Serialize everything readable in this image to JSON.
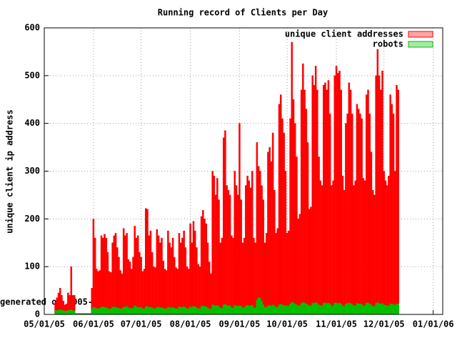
{
  "chart_data": {
    "type": "bar",
    "title": "Running record of Clients per Day",
    "ylabel": "unique client ip address",
    "footer": "generated on 2005-1",
    "x": [
      "05/08/05",
      "05/09/05",
      "05/10/05",
      "05/11/05",
      "05/12/05",
      "05/13/05",
      "05/14/05",
      "05/15/05",
      "05/16/05",
      "05/17/05",
      "05/18/05",
      "05/19/05",
      "05/20/05",
      "05/21/05",
      "05/22/05",
      "05/23/05",
      "05/24/05",
      "05/25/05",
      "05/26/05",
      "05/27/05",
      "05/28/05",
      "05/29/05",
      "05/30/05",
      "05/31/05",
      "06/01/05",
      "06/02/05",
      "06/03/05",
      "06/04/05",
      "06/05/05",
      "06/06/05",
      "06/07/05",
      "06/08/05",
      "06/09/05",
      "06/10/05",
      "06/11/05",
      "06/12/05",
      "06/13/05",
      "06/14/05",
      "06/15/05",
      "06/16/05",
      "06/17/05",
      "06/18/05",
      "06/19/05",
      "06/20/05",
      "06/21/05",
      "06/22/05",
      "06/23/05",
      "06/24/05",
      "06/25/05",
      "06/26/05",
      "06/27/05",
      "06/28/05",
      "06/29/05",
      "06/30/05",
      "07/01/05",
      "07/02/05",
      "07/03/05",
      "07/04/05",
      "07/05/05",
      "07/06/05",
      "07/07/05",
      "07/08/05",
      "07/09/05",
      "07/10/05",
      "07/11/05",
      "07/12/05",
      "07/13/05",
      "07/14/05",
      "07/15/05",
      "07/16/05",
      "07/17/05",
      "07/18/05",
      "07/19/05",
      "07/20/05",
      "07/21/05",
      "07/22/05",
      "07/23/05",
      "07/24/05",
      "07/25/05",
      "07/26/05",
      "07/27/05",
      "07/28/05",
      "07/29/05",
      "07/30/05",
      "07/31/05",
      "08/01/05",
      "08/02/05",
      "08/03/05",
      "08/04/05",
      "08/05/05",
      "08/06/05",
      "08/07/05",
      "08/08/05",
      "08/09/05",
      "08/10/05",
      "08/11/05",
      "08/12/05",
      "08/13/05",
      "08/14/05",
      "08/15/05",
      "08/16/05",
      "08/17/05",
      "08/18/05",
      "08/19/05",
      "08/20/05",
      "08/21/05",
      "08/22/05",
      "08/23/05",
      "08/24/05",
      "08/25/05",
      "08/26/05",
      "08/27/05",
      "08/28/05",
      "08/29/05",
      "08/30/05",
      "08/31/05",
      "09/01/05",
      "09/02/05",
      "09/03/05",
      "09/04/05",
      "09/05/05",
      "09/06/05",
      "09/07/05",
      "09/08/05",
      "09/09/05",
      "09/10/05",
      "09/11/05",
      "09/12/05",
      "09/13/05",
      "09/14/05",
      "09/15/05",
      "09/16/05",
      "09/17/05",
      "09/18/05",
      "09/19/05",
      "09/20/05",
      "09/21/05",
      "09/22/05",
      "09/23/05",
      "09/24/05",
      "09/25/05",
      "09/26/05",
      "09/27/05",
      "09/28/05",
      "09/29/05",
      "09/30/05",
      "10/01/05",
      "10/02/05",
      "10/03/05",
      "10/04/05",
      "10/05/05",
      "10/06/05",
      "10/07/05",
      "10/08/05",
      "10/09/05",
      "10/10/05",
      "10/11/05",
      "10/12/05",
      "10/13/05",
      "10/14/05",
      "10/15/05",
      "10/16/05",
      "10/17/05",
      "10/18/05",
      "10/19/05",
      "10/20/05",
      "10/21/05",
      "10/22/05",
      "10/23/05",
      "10/24/05",
      "10/25/05",
      "10/26/05",
      "10/27/05",
      "10/28/05",
      "10/29/05",
      "10/30/05",
      "10/31/05",
      "11/01/05",
      "11/02/05",
      "11/03/05",
      "11/04/05",
      "11/05/05",
      "11/06/05",
      "11/07/05",
      "11/08/05",
      "11/09/05",
      "11/10/05",
      "11/11/05",
      "11/12/05",
      "11/13/05",
      "11/14/05",
      "11/15/05",
      "11/16/05",
      "11/17/05",
      "11/18/05",
      "11/19/05",
      "11/20/05",
      "11/21/05",
      "11/22/05",
      "11/23/05",
      "11/24/05",
      "11/25/05",
      "11/26/05",
      "11/27/05",
      "11/28/05",
      "11/29/05",
      "11/30/05",
      "12/01/05",
      "12/02/05",
      "12/03/05",
      "12/04/05",
      "12/05/05",
      "12/06/05",
      "12/07/05",
      "12/08/05",
      "12/09/05",
      "12/10/05"
    ],
    "series": [
      {
        "name": "unique client addresses",
        "color": "#ff0000",
        "values": [
          25,
          35,
          45,
          55,
          40,
          28,
          20,
          22,
          45,
          40,
          100,
          40,
          40,
          2,
          2,
          2,
          2,
          2,
          2,
          2,
          2,
          2,
          2,
          55,
          200,
          160,
          95,
          90,
          92,
          165,
          160,
          168,
          160,
          130,
          90,
          88,
          150,
          165,
          170,
          140,
          120,
          92,
          85,
          180,
          165,
          170,
          115,
          110,
          95,
          120,
          185,
          160,
          165,
          130,
          120,
          90,
          95,
          222,
          220,
          165,
          175,
          130,
          100,
          98,
          178,
          165,
          150,
          160,
          112,
          95,
          92,
          175,
          150,
          140,
          160,
          120,
          98,
          95,
          170,
          150,
          160,
          175,
          140,
          100,
          95,
          190,
          150,
          195,
          175,
          140,
          105,
          100,
          205,
          218,
          200,
          190,
          150,
          110,
          85,
          300,
          290,
          250,
          285,
          240,
          150,
          160,
          370,
          385,
          270,
          260,
          250,
          165,
          160,
          300,
          270,
          250,
          400,
          240,
          150,
          160,
          270,
          290,
          280,
          265,
          300,
          160,
          150,
          360,
          310,
          300,
          270,
          240,
          150,
          170,
          340,
          350,
          320,
          380,
          260,
          170,
          180,
          440,
          460,
          410,
          380,
          300,
          170,
          175,
          410,
          570,
          450,
          400,
          330,
          200,
          210,
          470,
          525,
          470,
          430,
          360,
          220,
          225,
          500,
          480,
          520,
          470,
          330,
          280,
          270,
          480,
          485,
          470,
          490,
          420,
          270,
          280,
          500,
          520,
          505,
          510,
          470,
          290,
          260,
          400,
          420,
          485,
          470,
          420,
          270,
          280,
          440,
          430,
          420,
          410,
          285,
          280,
          460,
          470,
          420,
          340,
          260,
          250,
          500,
          555,
          500,
          470,
          510,
          300,
          280,
          270,
          290,
          460,
          440,
          420,
          300,
          480,
          470
        ]
      },
      {
        "name": "robots",
        "color": "#00c000",
        "values": [
          8,
          8,
          9,
          10,
          9,
          8,
          7,
          7,
          9,
          9,
          10,
          8,
          8,
          1,
          1,
          1,
          1,
          1,
          1,
          1,
          1,
          1,
          1,
          12,
          15,
          14,
          12,
          12,
          13,
          15,
          16,
          15,
          14,
          13,
          11,
          12,
          15,
          16,
          15,
          14,
          13,
          12,
          12,
          16,
          15,
          17,
          14,
          13,
          12,
          13,
          18,
          16,
          15,
          14,
          15,
          12,
          12,
          16,
          17,
          15,
          15,
          14,
          12,
          12,
          15,
          15,
          14,
          14,
          13,
          12,
          12,
          15,
          14,
          14,
          15,
          13,
          12,
          12,
          16,
          15,
          15,
          16,
          14,
          12,
          12,
          16,
          15,
          17,
          16,
          14,
          12,
          12,
          17,
          18,
          17,
          16,
          14,
          12,
          11,
          20,
          19,
          18,
          19,
          17,
          13,
          13,
          20,
          21,
          19,
          18,
          18,
          14,
          13,
          19,
          18,
          17,
          18,
          17,
          14,
          14,
          18,
          19,
          18,
          18,
          19,
          14,
          14,
          30,
          35,
          34,
          28,
          20,
          15,
          15,
          18,
          19,
          18,
          20,
          18,
          15,
          15,
          20,
          21,
          20,
          19,
          18,
          18,
          18,
          22,
          26,
          24,
          22,
          20,
          18,
          18,
          23,
          25,
          24,
          22,
          20,
          18,
          18,
          24,
          23,
          25,
          23,
          20,
          18,
          18,
          24,
          24,
          23,
          24,
          22,
          18,
          18,
          24,
          24,
          23,
          24,
          22,
          18,
          17,
          22,
          23,
          24,
          23,
          21,
          18,
          18,
          23,
          22,
          22,
          21,
          18,
          18,
          24,
          24,
          22,
          20,
          17,
          17,
          23,
          25,
          23,
          22,
          23,
          20,
          19,
          18,
          18,
          22,
          22,
          21,
          19,
          22,
          22
        ]
      }
    ],
    "xlim": [
      "05/01/05",
      "01/07/06"
    ],
    "xticks": [
      "05/01/05",
      "06/01/05",
      "07/01/05",
      "08/01/05",
      "09/01/05",
      "10/01/05",
      "11/01/05",
      "12/01/05",
      "01/01/06"
    ],
    "ylim": [
      0,
      600
    ],
    "yticks": [
      0,
      100,
      200,
      300,
      400,
      500,
      600
    ],
    "grid": true,
    "legend": "top-right"
  }
}
